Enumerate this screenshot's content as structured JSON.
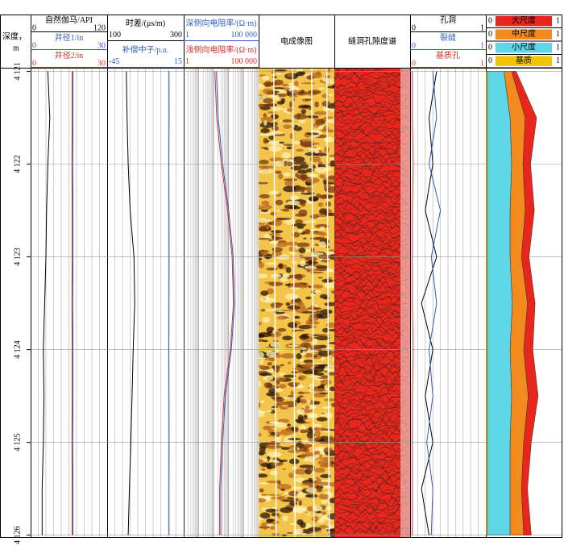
{
  "depth_axis": {
    "title": "深度，",
    "unit": "m",
    "ylim": [
      4120.97,
      4126.02
    ],
    "yticks": [
      {
        "value": 4121,
        "label": "4 121"
      },
      {
        "value": 4122,
        "label": "4 122"
      },
      {
        "value": 4123,
        "label": "4 123"
      },
      {
        "value": 4124,
        "label": "4 124"
      },
      {
        "value": 4125,
        "label": "4 125"
      },
      {
        "value": 4126,
        "label": "4 126"
      }
    ]
  },
  "depths": [
    4121,
    4121.5,
    4122,
    4122.5,
    4123,
    4123.5,
    4124,
    4124.5,
    4125,
    4125.5,
    4126
  ],
  "tracks": [
    {
      "type": "curves",
      "curves": [
        {
          "name": "自然伽马/API",
          "color": "#000000",
          "min": 0,
          "max": 120,
          "values": [
            27,
            30,
            27,
            25,
            24,
            22,
            20,
            21,
            20,
            18,
            18
          ]
        },
        {
          "name": "井径1/in",
          "color": "#2e5fb8",
          "min": 0,
          "max": 30,
          "values": [
            16.6,
            16.6,
            16.5,
            16.6,
            16.6,
            16.5,
            16.6,
            16.6,
            16.5,
            16.6,
            16.6
          ]
        },
        {
          "name": "井径2/in",
          "color": "#d0302a",
          "min": 0,
          "max": 30,
          "values": [
            16.3,
            16.3,
            16.2,
            16.3,
            16.3,
            16.2,
            16.3,
            16.3,
            16.2,
            16.3,
            16.3
          ]
        }
      ]
    },
    {
      "type": "curves",
      "curves": [
        {
          "name": "时差/(μs/m)",
          "color": "#000000",
          "min": 100,
          "max": 300,
          "values": [
            150,
            152,
            155,
            160,
            170,
            172,
            168,
            165,
            162,
            158,
            155
          ]
        },
        {
          "name": "补偿中子/p.u.",
          "color": "#2e5fb8",
          "min": -45,
          "max": 15,
          "values": [
            3.5,
            3.6,
            3.4,
            3.5,
            3.6,
            3.5,
            3.4,
            3.5,
            3.6,
            3.5,
            3.5
          ]
        }
      ]
    },
    {
      "type": "curves",
      "log": true,
      "curves": [
        {
          "name": "深侧向电阻率/(Ω·m)",
          "color": "#2e5fb8",
          "min": 1,
          "max": {
            "value": 100000,
            "label": "100 000"
          },
          "values": [
            150,
            200,
            400,
            1000,
            2000,
            2500,
            1500,
            600,
            400,
            300,
            300
          ]
        },
        {
          "name": "浅侧向电阻率/(Ω·m)",
          "color": "#d0302a",
          "min": 1,
          "max": {
            "value": 100000,
            "label": "100 000"
          },
          "values": [
            120,
            160,
            330,
            850,
            1700,
            2100,
            1300,
            500,
            330,
            250,
            250
          ]
        }
      ]
    },
    {
      "type": "image",
      "title": "电成像图"
    },
    {
      "type": "spectrum",
      "title": "缝洞孔隙度谱"
    },
    {
      "type": "curves",
      "curves": [
        {
          "name": "孔洞",
          "color": "#000000",
          "min": 0,
          "max": 1,
          "values": [
            0.35,
            0.25,
            0.3,
            0.2,
            0.35,
            0.15,
            0.3,
            0.2,
            0.3,
            0.15,
            0.25
          ]
        },
        {
          "name": "裂缝",
          "color": "#2e5fb8",
          "min": 0,
          "max": 1,
          "values": [
            0.3,
            0.35,
            0.25,
            0.4,
            0.28,
            0.35,
            0.25,
            0.3,
            0.22,
            0.3,
            0.28
          ]
        },
        {
          "name": "基质孔",
          "color": "#d0302a",
          "min": 0,
          "max": 1,
          "values": [
            0.03,
            0.03,
            0.04,
            0.03,
            0.03,
            0.03,
            0.04,
            0.03,
            0.03,
            0.03,
            0.03
          ]
        }
      ]
    },
    {
      "type": "stacked",
      "curves": [
        {
          "name": "大尺度",
          "color": "#e8261c",
          "min": 0,
          "max": 1,
          "values": [
            0.06,
            0.15,
            0.1,
            0.12,
            0.1,
            0.1,
            0.12,
            0.13,
            0.1,
            0.08,
            0.1
          ]
        },
        {
          "name": "中尺度",
          "color": "#f28a1e",
          "min": 0,
          "max": 1,
          "values": [
            0.1,
            0.2,
            0.15,
            0.2,
            0.15,
            0.2,
            0.18,
            0.22,
            0.18,
            0.15,
            0.18
          ]
        },
        {
          "name": "小尺度",
          "color": "#5fd6e8",
          "min": 0,
          "max": 1,
          "values": [
            0.22,
            0.3,
            0.32,
            0.3,
            0.3,
            0.33,
            0.3,
            0.32,
            0.3,
            0.3,
            0.3
          ]
        },
        {
          "name": "基质",
          "color": "#f5c400",
          "min": 0,
          "max": 1,
          "values": [
            0.02,
            0.02,
            0.02,
            0.02,
            0.02,
            0.02,
            0.02,
            0.02,
            0.02,
            0.02,
            0.02
          ]
        }
      ]
    }
  ]
}
